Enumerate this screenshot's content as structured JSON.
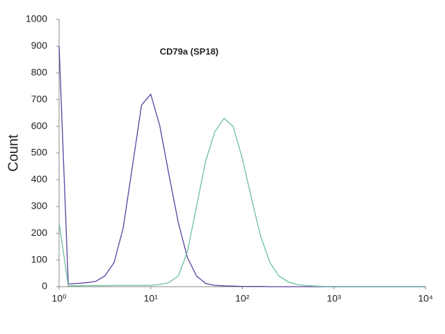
{
  "chart_data": {
    "type": "line",
    "title": "CD79a (SP18)",
    "y_label": "Count",
    "x_scale": "log",
    "xlim": [
      1,
      10000
    ],
    "xticks": [
      {
        "value": 1,
        "label": "10⁰"
      },
      {
        "value": 10,
        "label": "10¹"
      },
      {
        "value": 100,
        "label": "10²"
      },
      {
        "value": 1000,
        "label": "10³"
      },
      {
        "value": 10000,
        "label": "10⁴"
      }
    ],
    "ylim": [
      0,
      1000
    ],
    "yticks": [
      0,
      100,
      200,
      300,
      400,
      500,
      600,
      700,
      800,
      900,
      1000
    ],
    "x": [
      1,
      1.26,
      1.58,
      2,
      2.51,
      3.16,
      3.98,
      5.01,
      6.31,
      7.94,
      10,
      12.6,
      15.8,
      20,
      25.1,
      31.6,
      39.8,
      50.1,
      63.1,
      79.4,
      100,
      126,
      158,
      200,
      251,
      316,
      398,
      501,
      631,
      794,
      1000,
      1260,
      1580,
      2000,
      2510,
      3160,
      3980,
      5010,
      6310,
      7940,
      10000
    ],
    "series": [
      {
        "color": "#5a3d9e",
        "values": [
          900,
          10,
          12,
          15,
          20,
          40,
          90,
          220,
          450,
          680,
          720,
          600,
          420,
          240,
          110,
          40,
          12,
          5,
          3,
          2,
          1,
          1,
          1,
          0,
          0,
          0,
          0,
          0,
          0,
          0,
          0,
          0,
          0,
          0,
          0,
          0,
          0,
          0,
          0,
          0,
          0
        ]
      },
      {
        "color": "#6cbf9c",
        "values": [
          240,
          3,
          3,
          4,
          4,
          4,
          5,
          5,
          5,
          5,
          5,
          8,
          15,
          40,
          130,
          300,
          470,
          580,
          630,
          600,
          480,
          330,
          190,
          90,
          40,
          18,
          8,
          4,
          2,
          1,
          1,
          1,
          1,
          1,
          1,
          1,
          1,
          1,
          1,
          1,
          1
        ]
      }
    ]
  }
}
